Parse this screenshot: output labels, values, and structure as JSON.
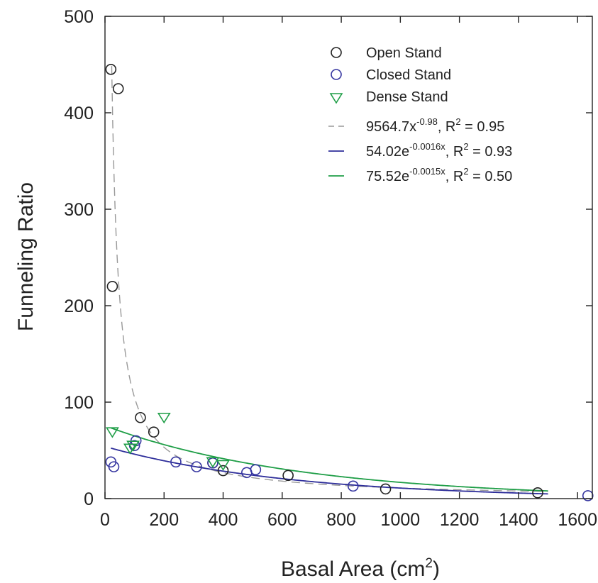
{
  "chart_data": {
    "type": "scatter",
    "xlabel": "Basal Area (cm",
    "xlabel_sup": "2",
    "xlabel_close": ")",
    "ylabel": "Funneling Ratio",
    "xlim": [
      0,
      1650
    ],
    "ylim": [
      0,
      500
    ],
    "x_ticks": [
      0,
      200,
      400,
      600,
      800,
      1000,
      1200,
      1400,
      1600
    ],
    "y_ticks": [
      0,
      100,
      200,
      300,
      400,
      500
    ],
    "legend_position": "top-right",
    "series": [
      {
        "name": "Open Stand",
        "marker": "circle",
        "color": "#222222",
        "points": [
          [
            20,
            445
          ],
          [
            45,
            425
          ],
          [
            25,
            220
          ],
          [
            120,
            84
          ],
          [
            165,
            69
          ],
          [
            365,
            37
          ],
          [
            400,
            29
          ],
          [
            620,
            24
          ],
          [
            950,
            10
          ],
          [
            1465,
            6
          ]
        ]
      },
      {
        "name": "Closed Stand",
        "marker": "circle",
        "color": "#3535a0",
        "points": [
          [
            20,
            38
          ],
          [
            30,
            33
          ],
          [
            100,
            55
          ],
          [
            105,
            60
          ],
          [
            240,
            38
          ],
          [
            310,
            33
          ],
          [
            365,
            37
          ],
          [
            480,
            27
          ],
          [
            510,
            30
          ],
          [
            840,
            13
          ],
          [
            1635,
            3
          ]
        ]
      },
      {
        "name": "Dense Stand",
        "marker": "triangle-down",
        "color": "#1f9e47",
        "points": [
          [
            25,
            69
          ],
          [
            85,
            52
          ],
          [
            95,
            55
          ],
          [
            200,
            84
          ],
          [
            365,
            38
          ],
          [
            400,
            35
          ]
        ]
      }
    ],
    "fits": [
      {
        "label_coef": "9564.7x",
        "label_exp": "-0.98",
        "label_r": ", R",
        "label_r_sup": "2",
        "label_r_val": " = 0.95",
        "kind": "power",
        "a": 9564.7,
        "b": -0.98,
        "x_range": [
          19,
          1500
        ],
        "color": "#999999",
        "dashed": true
      },
      {
        "label_coef": "54.02e",
        "label_exp": "-0.0016x",
        "label_r": ", R",
        "label_r_sup": "2",
        "label_r_val": " = 0.93",
        "kind": "exp",
        "a": 54.02,
        "b": -0.0016,
        "x_range": [
          20,
          1500
        ],
        "color": "#2d2d9a",
        "dashed": false
      },
      {
        "label_coef": "75.52e",
        "label_exp": "-0.0015x",
        "label_r": ", R",
        "label_r_sup": "2",
        "label_r_val": " = 0.50",
        "kind": "exp",
        "a": 75.52,
        "b": -0.0015,
        "x_range": [
          20,
          1500
        ],
        "color": "#1f9e47",
        "dashed": false
      }
    ]
  }
}
